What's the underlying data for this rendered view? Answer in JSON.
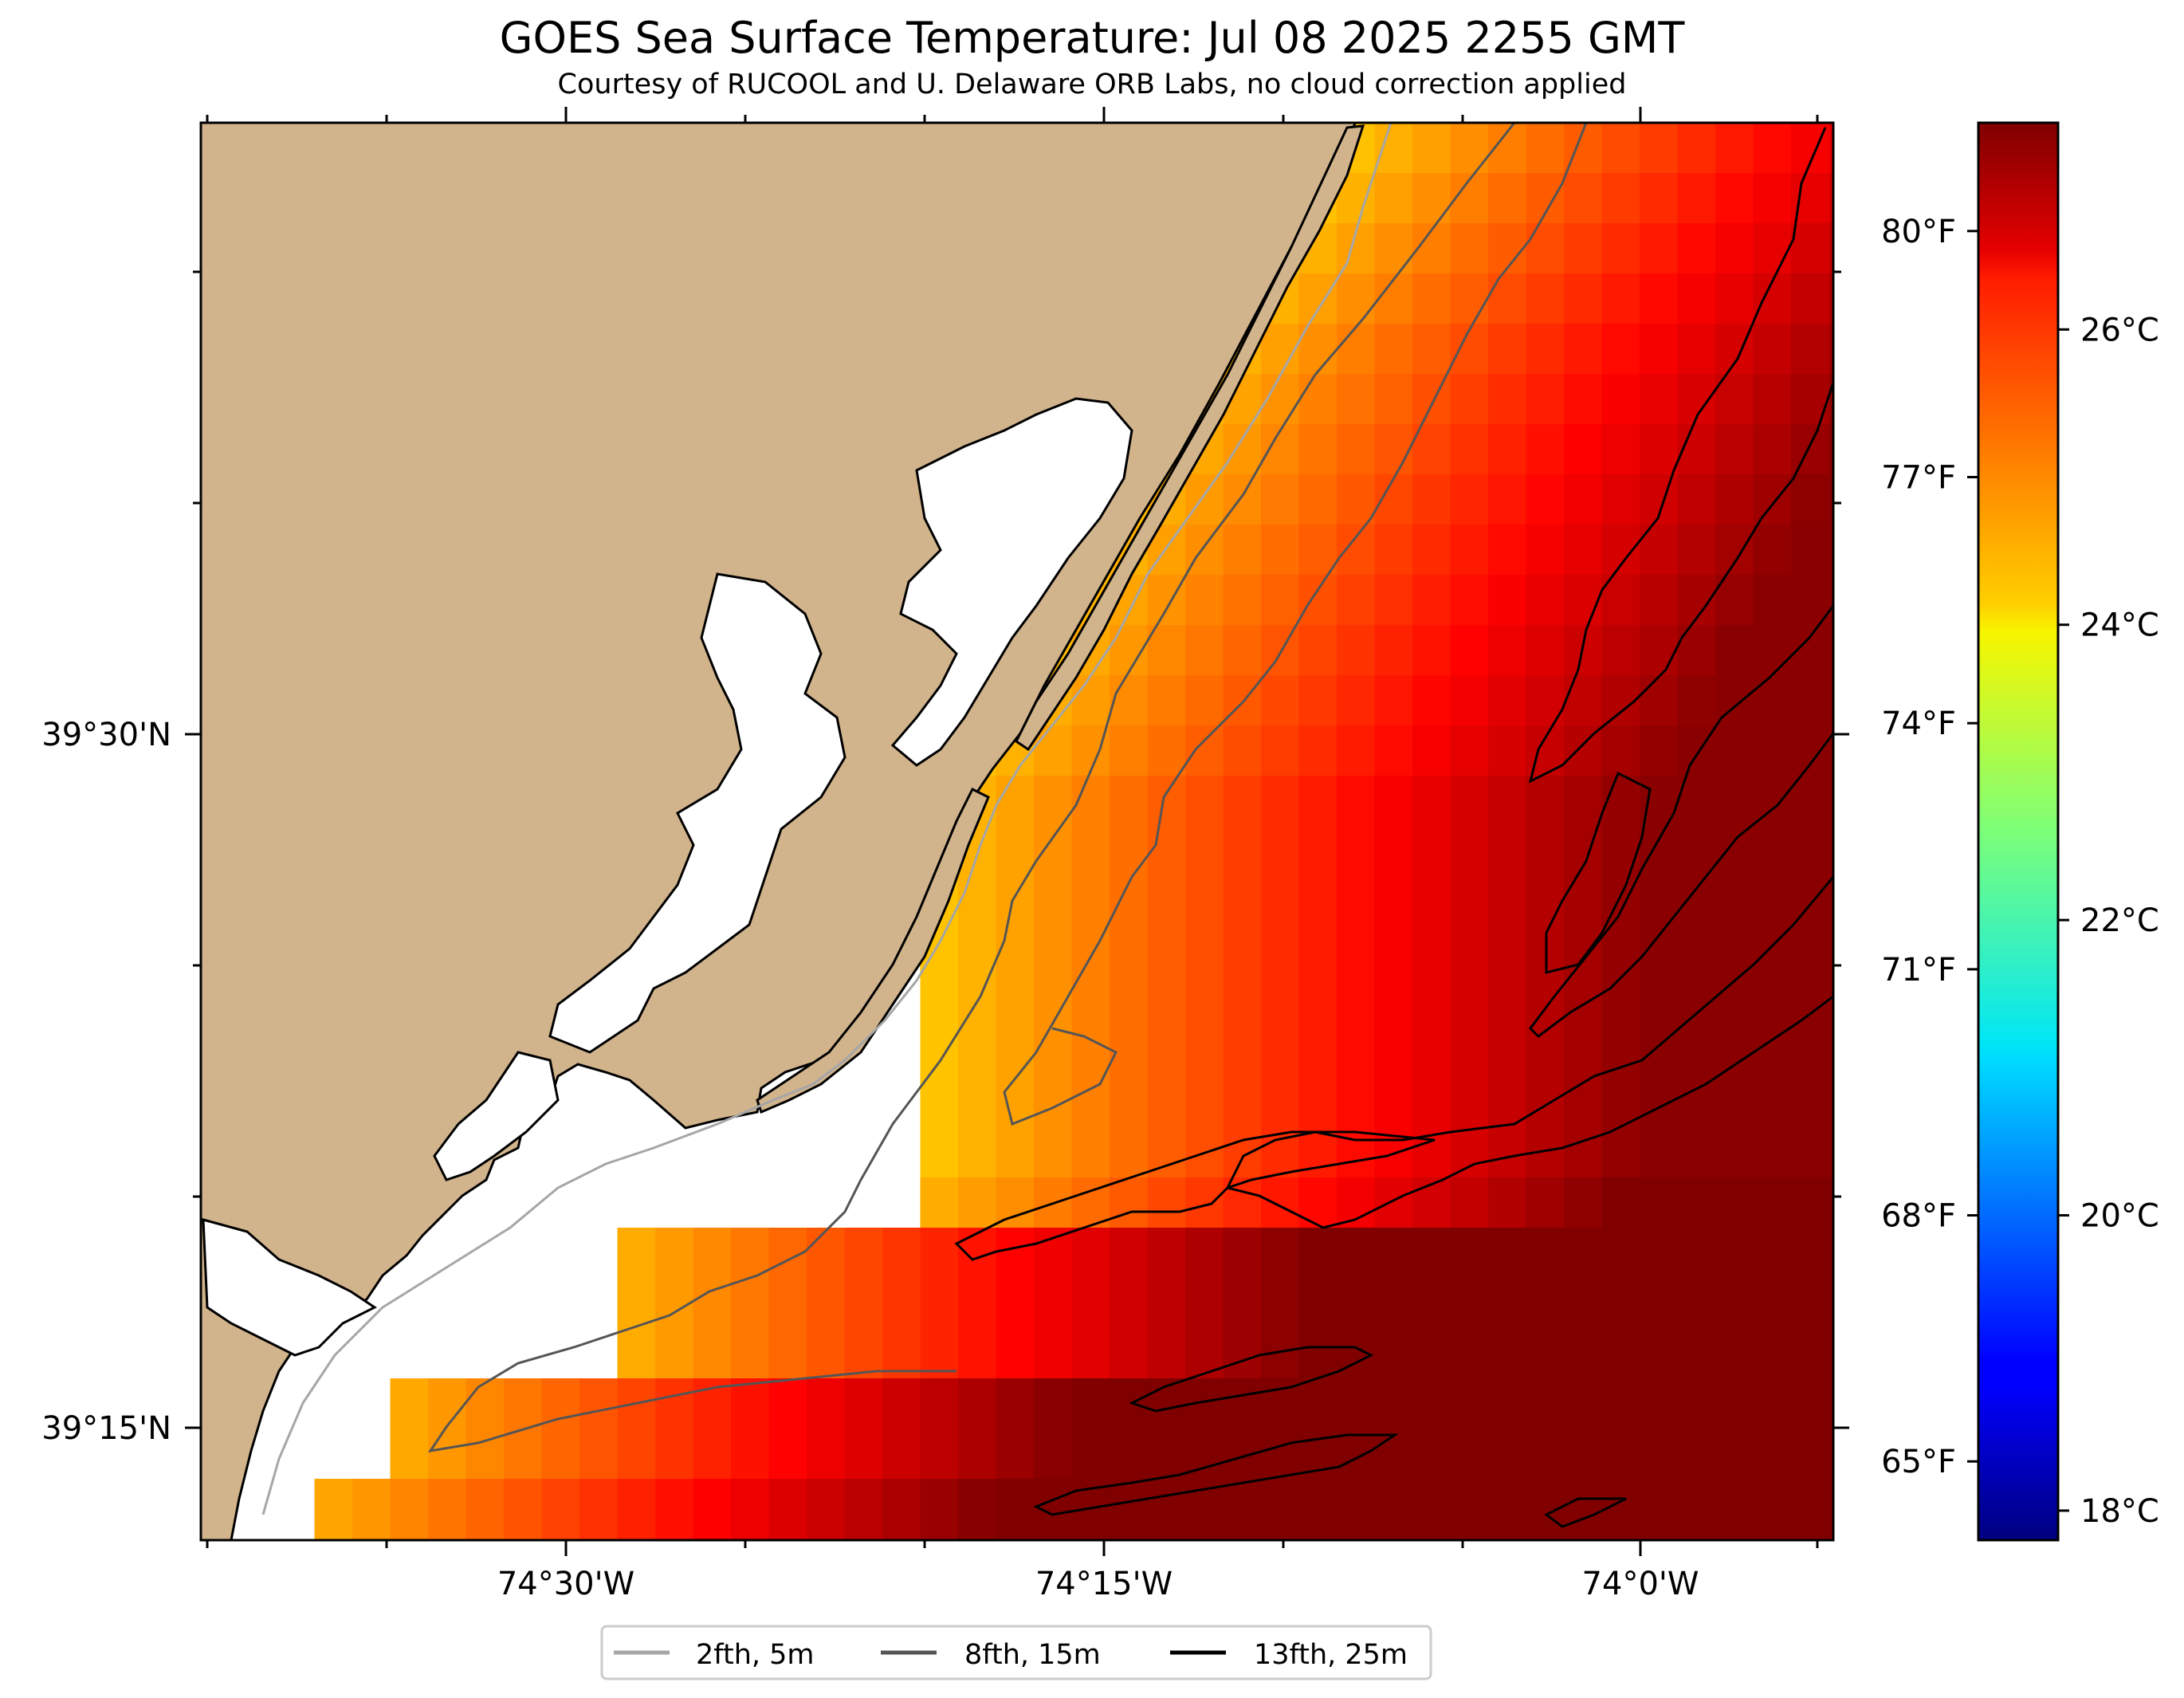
{
  "map": {
    "title": "GOES Sea Surface Temperature: Jul 08 2025 2255 GMT",
    "subtitle": "Courtesy of RUCOOL and U. Delaware ORB Labs, no cloud correction applied",
    "x_ticks": [
      "74°30'W",
      "74°15'W",
      "74°0'W"
    ],
    "y_ticks": [
      "39°30'N",
      "39°15'N"
    ],
    "land_color": "#d2b48c",
    "water_nodata_color": "#ffffff"
  },
  "colorbar": {
    "colormap": "jet",
    "range_c": [
      17.8,
      27.4
    ],
    "celsius_ticks": [
      "18°C",
      "20°C",
      "22°C",
      "24°C",
      "26°C"
    ],
    "celsius_values": [
      18,
      20,
      22,
      24,
      26
    ],
    "fahrenheit_ticks": [
      "65°F",
      "68°F",
      "71°F",
      "74°F",
      "77°F",
      "80°F"
    ],
    "fahrenheit_values": [
      65,
      68,
      71,
      74,
      77,
      80
    ]
  },
  "legend": {
    "items": [
      {
        "label": "2fth, 5m",
        "color": "#a6a6a6"
      },
      {
        "label": "8fth, 15m",
        "color": "#555555"
      },
      {
        "label": "13fth, 25m",
        "color": "#000000"
      }
    ]
  }
}
